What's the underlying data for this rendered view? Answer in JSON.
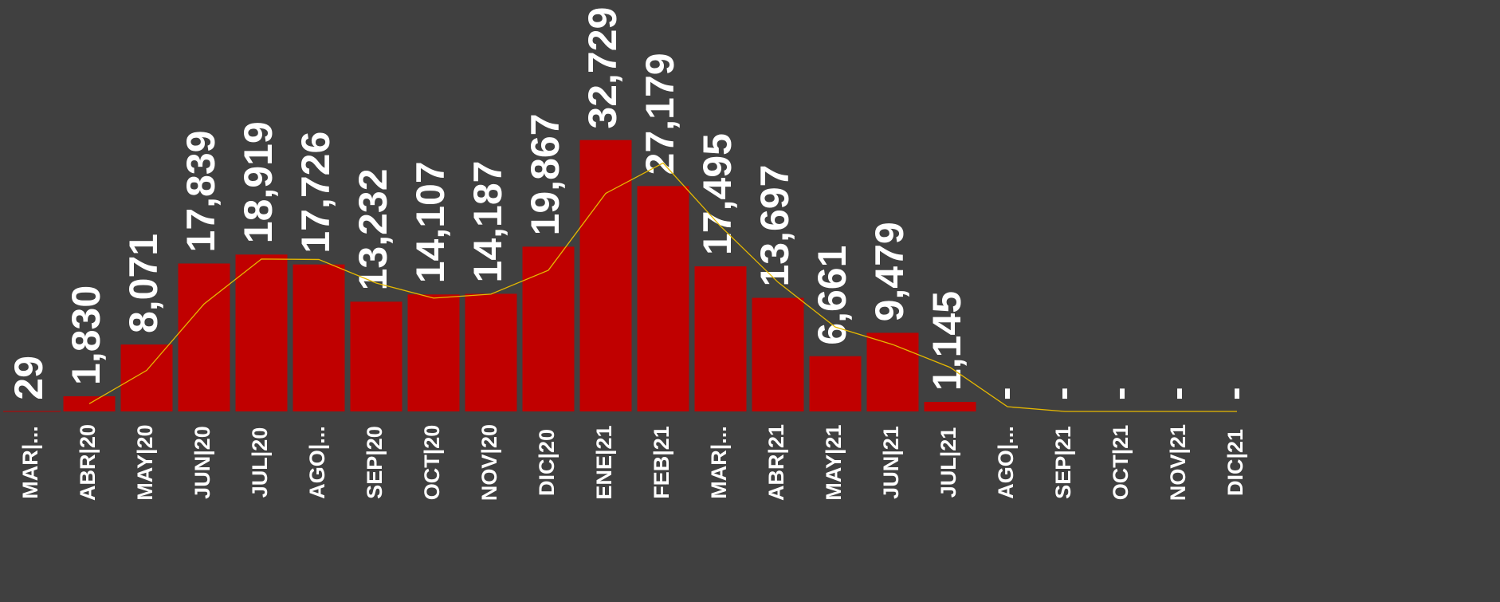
{
  "chart_data": {
    "type": "bar",
    "categories": [
      "MAR|...",
      "ABR|20",
      "MAY|20",
      "JUN|20",
      "JUL|20",
      "AGO|...",
      "SEP|20",
      "OCT|20",
      "NOV|20",
      "DIC|20",
      "ENE|21",
      "FEB|21",
      "MAR|...",
      "ABR|21",
      "MAY|21",
      "JUN|21",
      "JUL|21",
      "AGO|...",
      "SEP|21",
      "OCT|21",
      "NOV|21",
      "DIC|21"
    ],
    "series": [
      {
        "type": "bar",
        "color": "#c00000",
        "values": [
          29,
          1830,
          8071,
          17839,
          18919,
          17726,
          13232,
          14107,
          14187,
          19867,
          32729,
          27179,
          17495,
          13697,
          6661,
          9479,
          1145,
          0,
          0,
          0,
          0,
          0
        ],
        "value_labels": [
          "29",
          "1,830",
          "8,071",
          "17,839",
          "18,919",
          "17,726",
          "13,232",
          "14,107",
          "14,187",
          "19,867",
          "32,729",
          "27,179",
          "17,495",
          "13,697",
          "6,661",
          "9,479",
          "1,145",
          "-",
          "-",
          "-",
          "-",
          "-"
        ]
      },
      {
        "type": "line",
        "color": "#e6b800",
        "values": [
          null,
          929.5,
          4950.5,
          12955,
          18379,
          18322.5,
          15479,
          13669.5,
          14147,
          17027,
          26298,
          29954,
          22337,
          15596,
          10179,
          8070,
          5312,
          572.5,
          0,
          0,
          0,
          0
        ]
      }
    ],
    "ylim": [
      0,
      35000
    ]
  }
}
